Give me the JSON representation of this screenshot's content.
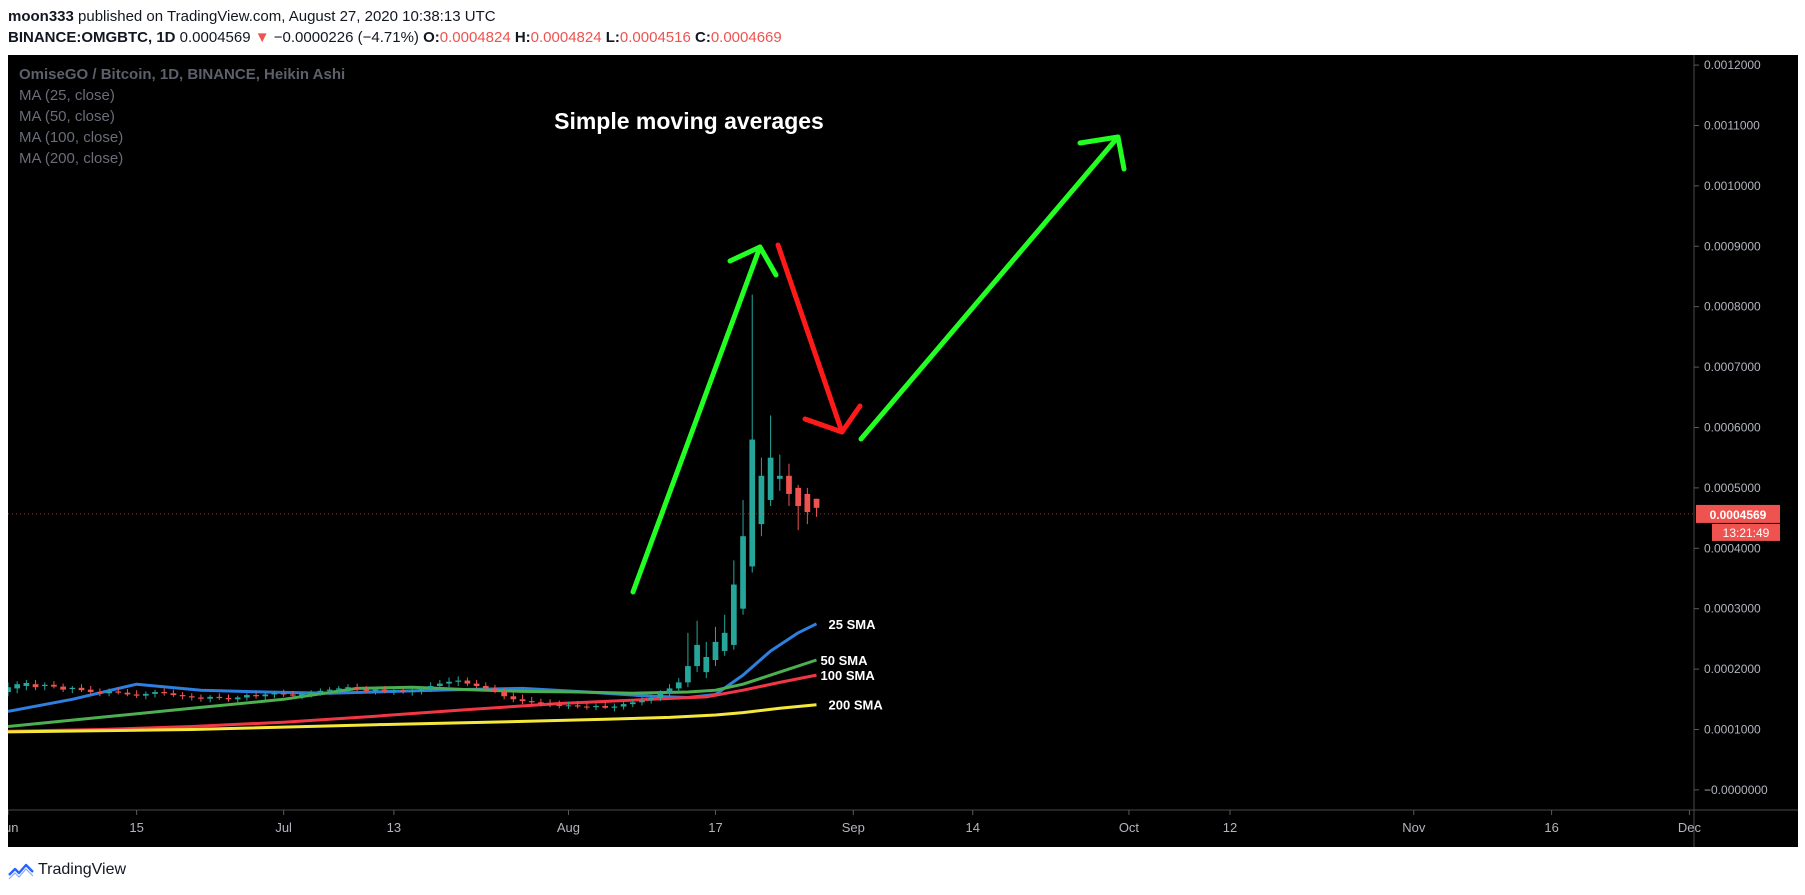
{
  "header": {
    "author": "moon333",
    "published": "published on TradingView.com, August 27, 2020 10:38:13 UTC",
    "symbol": "BINANCE:OMGBTC, 1D",
    "price": "0.0004569",
    "arrow": "▼",
    "change": "−0.0000226 (−4.71%)",
    "o_label": "O:",
    "o_value": "0.0004824",
    "h_label": "H:",
    "h_value": "0.0004824",
    "l_label": "L:",
    "l_value": "0.0004516",
    "c_label": "C:",
    "c_value": "0.0004669"
  },
  "legend": {
    "title": "OmiseGO / Bitcoin, 1D, BINANCE, Heikin Ashi",
    "ma": [
      "MA (25, close)",
      "MA (50, close)",
      "MA (100, close)",
      "MA (200, close)"
    ]
  },
  "footer": {
    "brand": "TradingView"
  },
  "colors": {
    "background": "#000000",
    "up": "#26a69a",
    "down": "#ef5350",
    "sma25": "#2f7fdf",
    "sma50": "#4caf50",
    "sma100": "#f23645",
    "sma200": "#f5e83a",
    "annotation_green": "#22ff22",
    "annotation_red": "#ff1a1a",
    "axis_text": "#b2b5be",
    "price_tag": "#ef5350"
  },
  "chart_data": {
    "type": "candlestick",
    "title": "Simple moving averages",
    "instrument": "OmiseGO / Bitcoin, 1D, BINANCE, Heikin Ashi",
    "ylim": [
      -3.33e-05,
      0.0012167
    ],
    "y_ticks": [
      "0.0012000",
      "0.0011000",
      "0.0010000",
      "0.0009000",
      "0.0008000",
      "0.0007000",
      "0.0006000",
      "0.0005000",
      "0.0004000",
      "0.0003000",
      "0.0002000",
      "0.0001000",
      "−0.0000000"
    ],
    "x_ticks": [
      {
        "label": "Jun",
        "day": 0
      },
      {
        "label": "15",
        "day": 14
      },
      {
        "label": "Jul",
        "day": 30
      },
      {
        "label": "13",
        "day": 42
      },
      {
        "label": "Aug",
        "day": 61
      },
      {
        "label": "17",
        "day": 77
      },
      {
        "label": "Sep",
        "day": 92
      },
      {
        "label": "14",
        "day": 105
      },
      {
        "label": "Oct",
        "day": 122
      },
      {
        "label": "12",
        "day": 133
      },
      {
        "label": "Nov",
        "day": 153
      },
      {
        "label": "16",
        "day": 168
      },
      {
        "label": "Dec",
        "day": 183
      }
    ],
    "x_range_days": [
      0,
      183.5
    ],
    "last_price_label": "0.0004569",
    "countdown_label": "13:21:49",
    "last_price": 0.0004569,
    "candles": [
      {
        "d": 0,
        "o": 0.000162,
        "h": 0.000178,
        "l": 0.000155,
        "c": 0.00017
      },
      {
        "d": 1,
        "o": 0.000168,
        "h": 0.00018,
        "l": 0.00016,
        "c": 0.000175
      },
      {
        "d": 2,
        "o": 0.000172,
        "h": 0.000182,
        "l": 0.000165,
        "c": 0.000177
      },
      {
        "d": 3,
        "o": 0.000175,
        "h": 0.000182,
        "l": 0.000165,
        "c": 0.00017
      },
      {
        "d": 4,
        "o": 0.000172,
        "h": 0.000178,
        "l": 0.000165,
        "c": 0.000174
      },
      {
        "d": 5,
        "o": 0.000174,
        "h": 0.00018,
        "l": 0.000168,
        "c": 0.000171
      },
      {
        "d": 6,
        "o": 0.000171,
        "h": 0.000176,
        "l": 0.000162,
        "c": 0.000166
      },
      {
        "d": 7,
        "o": 0.000167,
        "h": 0.000172,
        "l": 0.00016,
        "c": 0.000169
      },
      {
        "d": 8,
        "o": 0.000169,
        "h": 0.000175,
        "l": 0.000162,
        "c": 0.000165
      },
      {
        "d": 9,
        "o": 0.000166,
        "h": 0.000172,
        "l": 0.000158,
        "c": 0.000162
      },
      {
        "d": 10,
        "o": 0.000162,
        "h": 0.000168,
        "l": 0.000155,
        "c": 0.00016
      },
      {
        "d": 11,
        "o": 0.00016,
        "h": 0.000168,
        "l": 0.000155,
        "c": 0.000163
      },
      {
        "d": 12,
        "o": 0.000163,
        "h": 0.00017,
        "l": 0.000158,
        "c": 0.000161
      },
      {
        "d": 13,
        "o": 0.000161,
        "h": 0.000167,
        "l": 0.000155,
        "c": 0.000158
      },
      {
        "d": 14,
        "o": 0.000158,
        "h": 0.000165,
        "l": 0.000152,
        "c": 0.000156
      },
      {
        "d": 15,
        "o": 0.000156,
        "h": 0.000163,
        "l": 0.00015,
        "c": 0.000159
      },
      {
        "d": 16,
        "o": 0.000159,
        "h": 0.000166,
        "l": 0.000153,
        "c": 0.000162
      },
      {
        "d": 17,
        "o": 0.000162,
        "h": 0.000168,
        "l": 0.000156,
        "c": 0.00016
      },
      {
        "d": 18,
        "o": 0.00016,
        "h": 0.000166,
        "l": 0.000154,
        "c": 0.000157
      },
      {
        "d": 19,
        "o": 0.000157,
        "h": 0.000162,
        "l": 0.00015,
        "c": 0.000155
      },
      {
        "d": 20,
        "o": 0.000155,
        "h": 0.00016,
        "l": 0.000148,
        "c": 0.000153
      },
      {
        "d": 21,
        "o": 0.000153,
        "h": 0.000158,
        "l": 0.000146,
        "c": 0.000151
      },
      {
        "d": 22,
        "o": 0.000151,
        "h": 0.000157,
        "l": 0.000145,
        "c": 0.000154
      },
      {
        "d": 23,
        "o": 0.000154,
        "h": 0.00016,
        "l": 0.000149,
        "c": 0.000152
      },
      {
        "d": 24,
        "o": 0.000152,
        "h": 0.000158,
        "l": 0.000146,
        "c": 0.00015
      },
      {
        "d": 25,
        "o": 0.00015,
        "h": 0.000156,
        "l": 0.000145,
        "c": 0.000153
      },
      {
        "d": 26,
        "o": 0.000153,
        "h": 0.00016,
        "l": 0.000148,
        "c": 0.000157
      },
      {
        "d": 27,
        "o": 0.000157,
        "h": 0.000163,
        "l": 0.000151,
        "c": 0.000155
      },
      {
        "d": 28,
        "o": 0.000155,
        "h": 0.000161,
        "l": 0.000149,
        "c": 0.000158
      },
      {
        "d": 29,
        "o": 0.000158,
        "h": 0.000164,
        "l": 0.000152,
        "c": 0.00016
      },
      {
        "d": 30,
        "o": 0.00016,
        "h": 0.000166,
        "l": 0.000154,
        "c": 0.000158
      },
      {
        "d": 31,
        "o": 0.000158,
        "h": 0.000164,
        "l": 0.000152,
        "c": 0.000156
      },
      {
        "d": 32,
        "o": 0.000156,
        "h": 0.000162,
        "l": 0.00015,
        "c": 0.000159
      },
      {
        "d": 33,
        "o": 0.000159,
        "h": 0.000165,
        "l": 0.000153,
        "c": 0.000162
      },
      {
        "d": 34,
        "o": 0.000162,
        "h": 0.000168,
        "l": 0.000156,
        "c": 0.000164
      },
      {
        "d": 35,
        "o": 0.000164,
        "h": 0.00017,
        "l": 0.000158,
        "c": 0.000166
      },
      {
        "d": 36,
        "o": 0.000166,
        "h": 0.000172,
        "l": 0.00016,
        "c": 0.000168
      },
      {
        "d": 37,
        "o": 0.000168,
        "h": 0.000175,
        "l": 0.000162,
        "c": 0.00017
      },
      {
        "d": 38,
        "o": 0.00017,
        "h": 0.000176,
        "l": 0.000163,
        "c": 0.000167
      },
      {
        "d": 39,
        "o": 0.000167,
        "h": 0.000172,
        "l": 0.00016,
        "c": 0.000164
      },
      {
        "d": 40,
        "o": 0.000164,
        "h": 0.00017,
        "l": 0.000158,
        "c": 0.000166
      },
      {
        "d": 41,
        "o": 0.000166,
        "h": 0.000172,
        "l": 0.00016,
        "c": 0.000163
      },
      {
        "d": 42,
        "o": 0.000163,
        "h": 0.000169,
        "l": 0.000157,
        "c": 0.000165
      },
      {
        "d": 43,
        "o": 0.000165,
        "h": 0.000171,
        "l": 0.000159,
        "c": 0.000162
      },
      {
        "d": 44,
        "o": 0.000162,
        "h": 0.000168,
        "l": 0.000156,
        "c": 0.000164
      },
      {
        "d": 45,
        "o": 0.000164,
        "h": 0.000172,
        "l": 0.000158,
        "c": 0.000168
      },
      {
        "d": 46,
        "o": 0.000168,
        "h": 0.000178,
        "l": 0.000162,
        "c": 0.000172
      },
      {
        "d": 47,
        "o": 0.000172,
        "h": 0.000182,
        "l": 0.000166,
        "c": 0.000176
      },
      {
        "d": 48,
        "o": 0.000176,
        "h": 0.000186,
        "l": 0.00017,
        "c": 0.000179
      },
      {
        "d": 49,
        "o": 0.000179,
        "h": 0.000188,
        "l": 0.000172,
        "c": 0.000181
      },
      {
        "d": 50,
        "o": 0.000181,
        "h": 0.000186,
        "l": 0.000172,
        "c": 0.000176
      },
      {
        "d": 51,
        "o": 0.000176,
        "h": 0.000182,
        "l": 0.000168,
        "c": 0.000172
      },
      {
        "d": 52,
        "o": 0.000172,
        "h": 0.000178,
        "l": 0.000164,
        "c": 0.000168
      },
      {
        "d": 53,
        "o": 0.000168,
        "h": 0.000174,
        "l": 0.00016,
        "c": 0.000163
      },
      {
        "d": 54,
        "o": 0.000163,
        "h": 0.000169,
        "l": 0.00015,
        "c": 0.000155
      },
      {
        "d": 55,
        "o": 0.000155,
        "h": 0.000162,
        "l": 0.000145,
        "c": 0.00015
      },
      {
        "d": 56,
        "o": 0.00015,
        "h": 0.000158,
        "l": 0.000142,
        "c": 0.000147
      },
      {
        "d": 57,
        "o": 0.000147,
        "h": 0.000154,
        "l": 0.00014,
        "c": 0.000145
      },
      {
        "d": 58,
        "o": 0.000145,
        "h": 0.000151,
        "l": 0.000138,
        "c": 0.000143
      },
      {
        "d": 59,
        "o": 0.000143,
        "h": 0.00015,
        "l": 0.000137,
        "c": 0.000141
      },
      {
        "d": 60,
        "o": 0.000141,
        "h": 0.000148,
        "l": 0.000135,
        "c": 0.000139
      },
      {
        "d": 61,
        "o": 0.000139,
        "h": 0.000146,
        "l": 0.000134,
        "c": 0.00014
      },
      {
        "d": 62,
        "o": 0.00014,
        "h": 0.000147,
        "l": 0.000135,
        "c": 0.000138
      },
      {
        "d": 63,
        "o": 0.000138,
        "h": 0.000145,
        "l": 0.000133,
        "c": 0.000137
      },
      {
        "d": 64,
        "o": 0.000137,
        "h": 0.000143,
        "l": 0.000132,
        "c": 0.000139
      },
      {
        "d": 65,
        "o": 0.000139,
        "h": 0.000146,
        "l": 0.000134,
        "c": 0.000136
      },
      {
        "d": 66,
        "o": 0.000136,
        "h": 0.000143,
        "l": 0.00013,
        "c": 0.000138
      },
      {
        "d": 67,
        "o": 0.000138,
        "h": 0.000146,
        "l": 0.000133,
        "c": 0.000142
      },
      {
        "d": 68,
        "o": 0.000142,
        "h": 0.00015,
        "l": 0.000137,
        "c": 0.000145
      },
      {
        "d": 69,
        "o": 0.000145,
        "h": 0.000154,
        "l": 0.00014,
        "c": 0.000148
      },
      {
        "d": 70,
        "o": 0.000148,
        "h": 0.000158,
        "l": 0.000143,
        "c": 0.000152
      },
      {
        "d": 71,
        "o": 0.000152,
        "h": 0.000165,
        "l": 0.000147,
        "c": 0.00016
      },
      {
        "d": 72,
        "o": 0.00016,
        "h": 0.000175,
        "l": 0.000155,
        "c": 0.000168
      },
      {
        "d": 73,
        "o": 0.000168,
        "h": 0.000185,
        "l": 0.000162,
        "c": 0.000178
      },
      {
        "d": 74,
        "o": 0.000178,
        "h": 0.00026,
        "l": 0.00017,
        "c": 0.000205
      },
      {
        "d": 75,
        "o": 0.000205,
        "h": 0.00028,
        "l": 0.000195,
        "c": 0.00024
      },
      {
        "d": 76,
        "o": 0.000195,
        "h": 0.000245,
        "l": 0.000185,
        "c": 0.00022
      },
      {
        "d": 77,
        "o": 0.000215,
        "h": 0.00027,
        "l": 0.000205,
        "c": 0.000245
      },
      {
        "d": 78,
        "o": 0.00023,
        "h": 0.00029,
        "l": 0.000222,
        "c": 0.00026
      },
      {
        "d": 79,
        "o": 0.00024,
        "h": 0.00038,
        "l": 0.000232,
        "c": 0.00034
      },
      {
        "d": 80,
        "o": 0.0003,
        "h": 0.00048,
        "l": 0.00029,
        "c": 0.00042
      },
      {
        "d": 81,
        "o": 0.00037,
        "h": 0.00082,
        "l": 0.00036,
        "c": 0.00058
      },
      {
        "d": 82,
        "o": 0.00044,
        "h": 0.00055,
        "l": 0.00042,
        "c": 0.00052
      },
      {
        "d": 83,
        "o": 0.00048,
        "h": 0.00062,
        "l": 0.00047,
        "c": 0.00055
      },
      {
        "d": 84,
        "o": 0.000515,
        "h": 0.000555,
        "l": 0.000495,
        "c": 0.00052
      },
      {
        "d": 85,
        "o": 0.00052,
        "h": 0.00054,
        "l": 0.00047,
        "c": 0.00049
      },
      {
        "d": 86,
        "o": 0.0005,
        "h": 0.000505,
        "l": 0.00043,
        "c": 0.00047
      },
      {
        "d": 87,
        "o": 0.00049,
        "h": 0.0005,
        "l": 0.00044,
        "c": 0.00046
      },
      {
        "d": 88,
        "o": 0.000482,
        "h": 0.000482,
        "l": 0.000452,
        "c": 0.000467
      }
    ],
    "series": [
      {
        "name": "25 SMA",
        "color_key": "sma25",
        "points": [
          [
            0,
            0.00013
          ],
          [
            7,
            0.00015
          ],
          [
            14,
            0.000175
          ],
          [
            21,
            0.000165
          ],
          [
            28,
            0.000162
          ],
          [
            35,
            0.00016
          ],
          [
            42,
            0.000163
          ],
          [
            49,
            0.000166
          ],
          [
            56,
            0.000168
          ],
          [
            63,
            0.000162
          ],
          [
            70,
            0.000155
          ],
          [
            74,
            0.000153
          ],
          [
            77,
            0.000158
          ],
          [
            80,
            0.00019
          ],
          [
            83,
            0.00023
          ],
          [
            86,
            0.00026
          ],
          [
            88,
            0.000275
          ]
        ]
      },
      {
        "name": "50 SMA",
        "color_key": "sma50",
        "points": [
          [
            0,
            0.000105
          ],
          [
            10,
            0.00012
          ],
          [
            20,
            0.000135
          ],
          [
            30,
            0.00015
          ],
          [
            38,
            0.000168
          ],
          [
            44,
            0.00017
          ],
          [
            50,
            0.000166
          ],
          [
            56,
            0.000163
          ],
          [
            62,
            0.000162
          ],
          [
            68,
            0.00016
          ],
          [
            74,
            0.000162
          ],
          [
            77,
            0.000165
          ],
          [
            80,
            0.000175
          ],
          [
            84,
            0.000195
          ],
          [
            88,
            0.000215
          ]
        ]
      },
      {
        "name": "100 SMA",
        "color_key": "sma100",
        "points": [
          [
            0,
            9.7e-05
          ],
          [
            10,
            0.0001
          ],
          [
            20,
            0.000105
          ],
          [
            30,
            0.000112
          ],
          [
            40,
            0.000122
          ],
          [
            50,
            0.000133
          ],
          [
            60,
            0.000143
          ],
          [
            70,
            0.00015
          ],
          [
            76,
            0.000154
          ],
          [
            80,
            0.000165
          ],
          [
            84,
            0.000178
          ],
          [
            88,
            0.00019
          ]
        ]
      },
      {
        "name": "200 SMA",
        "color_key": "sma200",
        "points": [
          [
            0,
            9.6e-05
          ],
          [
            20,
            0.0001
          ],
          [
            40,
            0.000108
          ],
          [
            55,
            0.000113
          ],
          [
            65,
            0.000117
          ],
          [
            72,
            0.00012
          ],
          [
            77,
            0.000124
          ],
          [
            80,
            0.000128
          ],
          [
            84,
            0.000135
          ],
          [
            88,
            0.000141
          ]
        ]
      }
    ],
    "annotations": {
      "title": "Simple moving averages",
      "sma_labels": [
        "25 SMA",
        "50 SMA",
        "100 SMA",
        "200 SMA"
      ]
    }
  }
}
